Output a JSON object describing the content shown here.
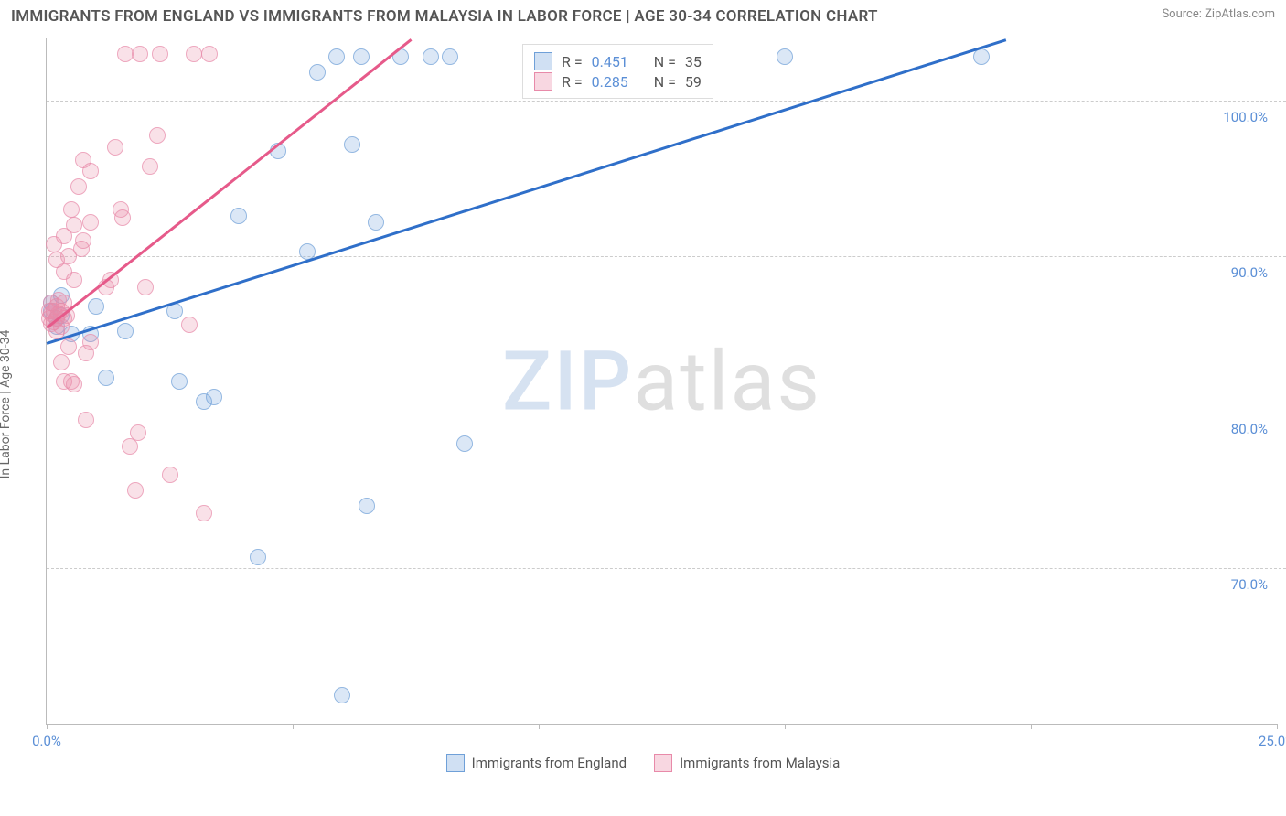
{
  "title": "IMMIGRANTS FROM ENGLAND VS IMMIGRANTS FROM MALAYSIA IN LABOR FORCE | AGE 30-34 CORRELATION CHART",
  "source_label": "Source:",
  "source_name": "ZipAtlas.com",
  "y_axis_label": "In Labor Force | Age 30-34",
  "watermark_a": "ZIP",
  "watermark_b": "atlas",
  "chart": {
    "type": "scatter",
    "xlim": [
      0,
      25
    ],
    "x_unit": "%",
    "ylim": [
      60,
      104
    ],
    "y_unit": "%",
    "x_ticks": [
      0,
      5,
      10,
      15,
      20,
      25
    ],
    "x_tick_labels": [
      "0.0%",
      "",
      "",
      "",
      "",
      "25.0%"
    ],
    "y_ticks": [
      70,
      80,
      90,
      100
    ],
    "y_tick_labels": [
      "70.0%",
      "80.0%",
      "90.0%",
      "100.0%"
    ],
    "grid_color": "#cccccc",
    "background_color": "#ffffff",
    "marker_size": 18,
    "marker_opacity": 0.75,
    "series": [
      {
        "name": "Immigrants from England",
        "color_fill": "rgba(120,165,220,0.35)",
        "color_stroke": "#6fa0d8",
        "line_color": "#2f6fc9",
        "R": "0.451",
        "N": "35",
        "trend": {
          "x1": 0,
          "y1": 84.5,
          "x2": 19.5,
          "y2": 104
        },
        "points": [
          [
            0.1,
            86.5
          ],
          [
            0.1,
            87.0
          ],
          [
            0.2,
            85.5
          ],
          [
            0.2,
            86.0
          ],
          [
            0.3,
            86.2
          ],
          [
            0.3,
            87.5
          ],
          [
            0.5,
            85.0
          ],
          [
            0.9,
            85.0
          ],
          [
            1.0,
            86.8
          ],
          [
            1.2,
            82.2
          ],
          [
            1.6,
            85.2
          ],
          [
            2.6,
            86.5
          ],
          [
            2.7,
            82.0
          ],
          [
            3.2,
            80.7
          ],
          [
            3.4,
            81.0
          ],
          [
            3.9,
            92.6
          ],
          [
            4.3,
            70.7
          ],
          [
            4.7,
            96.8
          ],
          [
            5.3,
            90.3
          ],
          [
            5.5,
            101.8
          ],
          [
            5.9,
            102.8
          ],
          [
            6.0,
            61.8
          ],
          [
            6.2,
            97.2
          ],
          [
            6.4,
            102.8
          ],
          [
            6.5,
            74.0
          ],
          [
            6.7,
            92.2
          ],
          [
            7.2,
            102.8
          ],
          [
            7.8,
            102.8
          ],
          [
            8.2,
            102.8
          ],
          [
            8.5,
            78.0
          ],
          [
            15.0,
            102.8
          ],
          [
            19.0,
            102.8
          ]
        ]
      },
      {
        "name": "Immigrants from Malaysia",
        "color_fill": "rgba(235,140,170,0.35)",
        "color_stroke": "#e88aa9",
        "line_color": "#e65a8a",
        "R": "0.285",
        "N": "59",
        "trend": {
          "x1": 0,
          "y1": 85.5,
          "x2": 7.4,
          "y2": 104
        },
        "points": [
          [
            0.05,
            86.0
          ],
          [
            0.05,
            86.5
          ],
          [
            0.1,
            86.3
          ],
          [
            0.1,
            85.7
          ],
          [
            0.1,
            87.0
          ],
          [
            0.15,
            86.5
          ],
          [
            0.15,
            85.8
          ],
          [
            0.2,
            86.0
          ],
          [
            0.2,
            86.8
          ],
          [
            0.2,
            85.2
          ],
          [
            0.25,
            86.3
          ],
          [
            0.25,
            87.2
          ],
          [
            0.3,
            86.5
          ],
          [
            0.3,
            85.5
          ],
          [
            0.35,
            86.0
          ],
          [
            0.35,
            87.0
          ],
          [
            0.4,
            86.2
          ],
          [
            0.15,
            90.8
          ],
          [
            0.2,
            89.8
          ],
          [
            0.35,
            89.0
          ],
          [
            0.35,
            91.3
          ],
          [
            0.45,
            90.0
          ],
          [
            0.5,
            93.0
          ],
          [
            0.55,
            92.0
          ],
          [
            0.55,
            88.5
          ],
          [
            0.65,
            94.5
          ],
          [
            0.7,
            90.5
          ],
          [
            0.75,
            91.0
          ],
          [
            0.75,
            96.2
          ],
          [
            0.9,
            92.2
          ],
          [
            0.9,
            95.5
          ],
          [
            0.3,
            83.2
          ],
          [
            0.35,
            82.0
          ],
          [
            0.45,
            84.2
          ],
          [
            0.5,
            82.0
          ],
          [
            0.55,
            81.8
          ],
          [
            0.8,
            83.8
          ],
          [
            0.9,
            84.5
          ],
          [
            0.8,
            79.5
          ],
          [
            1.2,
            88.0
          ],
          [
            1.3,
            88.5
          ],
          [
            1.4,
            97.0
          ],
          [
            1.5,
            93.0
          ],
          [
            1.55,
            92.5
          ],
          [
            1.6,
            103.0
          ],
          [
            1.7,
            77.8
          ],
          [
            1.8,
            75.0
          ],
          [
            1.85,
            78.7
          ],
          [
            1.9,
            103.0
          ],
          [
            2.0,
            88.0
          ],
          [
            2.1,
            95.8
          ],
          [
            2.25,
            97.8
          ],
          [
            2.3,
            103.0
          ],
          [
            2.5,
            76.0
          ],
          [
            2.9,
            85.6
          ],
          [
            3.0,
            103.0
          ],
          [
            3.2,
            73.5
          ],
          [
            3.3,
            103.0
          ]
        ]
      }
    ]
  },
  "legend_top": {
    "R_label": "R =",
    "N_label": "N ="
  },
  "legend_bottom_labels": [
    "Immigrants from England",
    "Immigrants from Malaysia"
  ]
}
